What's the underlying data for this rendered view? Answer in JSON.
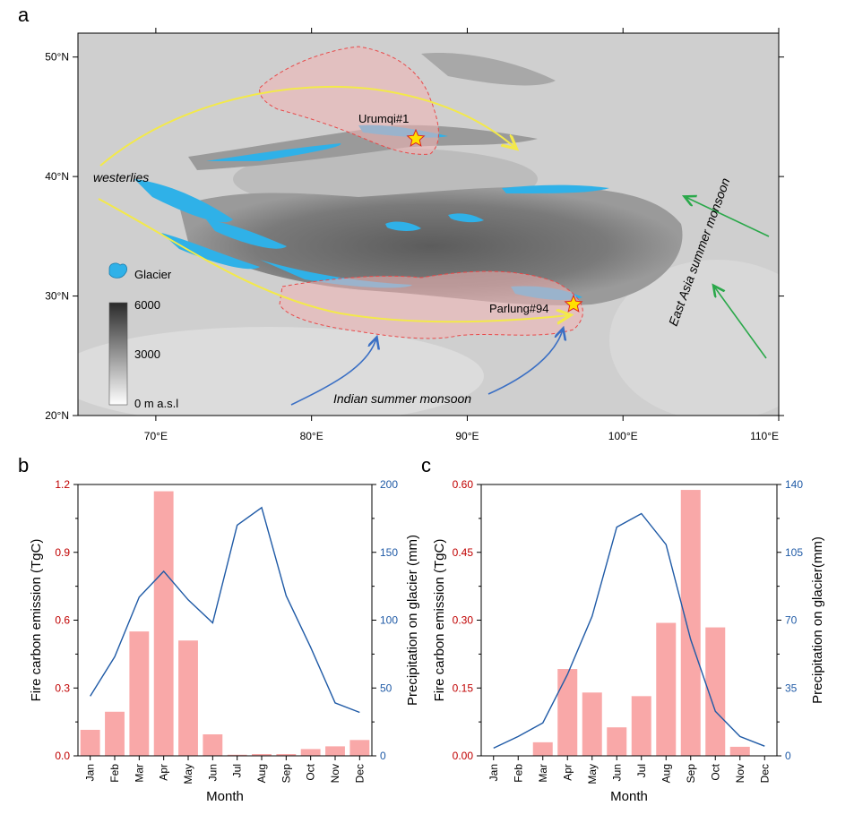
{
  "panels": {
    "a": "a",
    "b": "b",
    "c": "c"
  },
  "map": {
    "lon_ticks": [
      "70°E",
      "80°E",
      "90°E",
      "100°E",
      "110°E"
    ],
    "lat_ticks": [
      "50°N",
      "40°N",
      "30°N",
      "20°N"
    ],
    "lon_range": [
      65,
      110
    ],
    "lat_range": [
      20,
      52
    ],
    "sites": [
      {
        "name": "Urumqi#1",
        "lon": 86.8,
        "lat": 43.1
      },
      {
        "name": "Parlung#94",
        "lon": 96.9,
        "lat": 29.4
      }
    ],
    "labels": {
      "westerlies": "westerlies",
      "indian_monsoon": "Indian summer monsoon",
      "east_asia_monsoon": "East Asia summer monsoon",
      "glacier_legend": "Glacier"
    },
    "elevation_legend": {
      "max": "6000",
      "mid": "3000",
      "min": "0 m a.s.l"
    },
    "colors": {
      "glacier": "#2fb1e8",
      "westerlies_arrow": "#f3e94a",
      "indian_arrow": "#3a6fc4",
      "east_asia_arrow": "#2aa84a",
      "region": "#f2b5b5",
      "region_border": "#e84a4a",
      "star": "#ffe000"
    }
  },
  "chart_data": [
    {
      "panel": "b",
      "type": "bar",
      "categories": [
        "Jan",
        "Feb",
        "Mar",
        "Apr",
        "May",
        "Jun",
        "Jul",
        "Aug",
        "Sep",
        "Oct",
        "Nov",
        "Dec"
      ],
      "series": [
        {
          "name": "Fire carbon emission (TgC)",
          "type": "bar",
          "axis": "left",
          "values": [
            0.115,
            0.195,
            0.55,
            1.17,
            0.51,
            0.095,
            0.005,
            0.008,
            0.008,
            0.03,
            0.042,
            0.07
          ]
        },
        {
          "name": "Precipitation on glacier (mm)",
          "type": "line",
          "axis": "right",
          "values": [
            44,
            73,
            117,
            136,
            115,
            98,
            170,
            183,
            118,
            80,
            39,
            32
          ]
        }
      ],
      "xlabel": "Month",
      "ylabel_left": "Fire carbon emission (TgC)",
      "ylabel_right": "Precipitation on glacier (mm)",
      "ylim_left": [
        0,
        1.2
      ],
      "ylim_right": [
        0,
        200
      ],
      "yticks_left": [
        "0.0",
        "0.3",
        "0.6",
        "0.9",
        "1.2"
      ],
      "yticks_right": [
        "0",
        "50",
        "100",
        "150",
        "200"
      ],
      "colors": {
        "bar": "#f9a8a8",
        "line": "#1f5aa6",
        "left_axis": "#c00000",
        "right_axis": "#1f5aa6"
      }
    },
    {
      "panel": "c",
      "type": "bar",
      "categories": [
        "Jan",
        "Feb",
        "Mar",
        "Apr",
        "May",
        "Jun",
        "Jul",
        "Aug",
        "Sep",
        "Oct",
        "Nov",
        "Dec"
      ],
      "series": [
        {
          "name": "Fire carbon emission (TgC)",
          "type": "bar",
          "axis": "left",
          "values": [
            0.0,
            0.0,
            0.03,
            0.192,
            0.14,
            0.063,
            0.132,
            0.294,
            0.588,
            0.284,
            0.02,
            0.0
          ]
        },
        {
          "name": "Precipitation on glacier(mm)",
          "type": "line",
          "axis": "right",
          "values": [
            4,
            10,
            17,
            42,
            72,
            118,
            125,
            109,
            60,
            23,
            10,
            5
          ]
        }
      ],
      "xlabel": "Month",
      "ylabel_left": "Fire carbon emission (TgC)",
      "ylabel_right": "Precipitation on glacier(mm)",
      "ylim_left": [
        0,
        0.6
      ],
      "ylim_right": [
        0,
        140
      ],
      "yticks_left": [
        "0.00",
        "0.15",
        "0.30",
        "0.45",
        "0.60"
      ],
      "yticks_right": [
        "0",
        "35",
        "70",
        "105",
        "140"
      ],
      "colors": {
        "bar": "#f9a8a8",
        "line": "#1f5aa6",
        "left_axis": "#c00000",
        "right_axis": "#1f5aa6"
      }
    }
  ]
}
